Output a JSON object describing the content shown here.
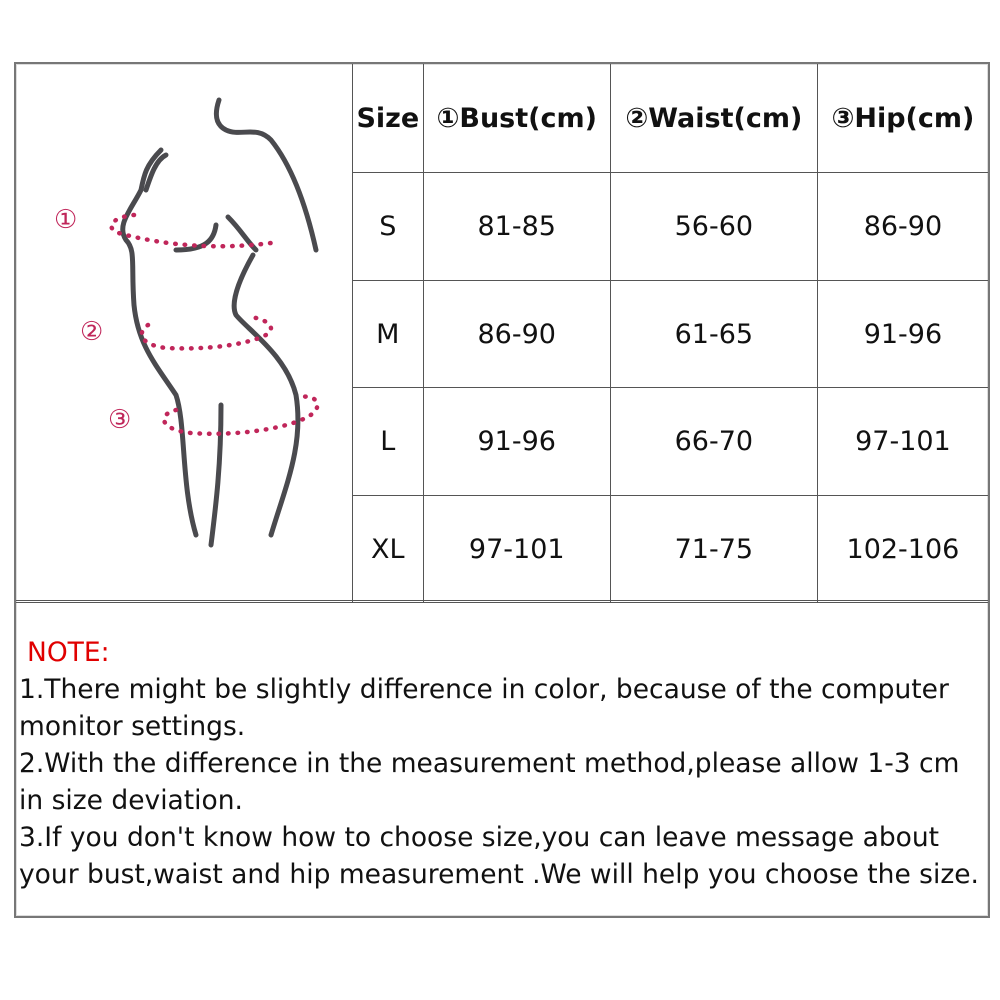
{
  "figure": {
    "markers": [
      "①",
      "②",
      "③"
    ],
    "accent_color": "#c0265a"
  },
  "table": {
    "headers": [
      "Size",
      "①Bust(cm)",
      "②Waist(cm)",
      "③Hip(cm)"
    ],
    "rows": [
      [
        "S",
        "81-85",
        "56-60",
        "86-90"
      ],
      [
        "M",
        "86-90",
        "61-65",
        "91-96"
      ],
      [
        "L",
        "91-96",
        "66-70",
        "97-101"
      ],
      [
        "XL",
        "97-101",
        "71-75",
        "102-106"
      ]
    ]
  },
  "note": {
    "title": "NOTE:",
    "lines": [
      "1.There might be slightly difference in color, because of the computer monitor settings.",
      "2.With the difference in the measurement method,please allow 1-3 cm in size deviation.",
      "3.If you don't know how to choose size,you can leave message about your bust,waist and hip measurement .We will help you choose the size."
    ]
  }
}
